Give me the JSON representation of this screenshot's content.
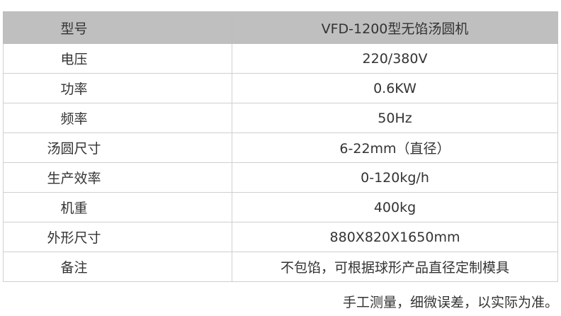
{
  "table": {
    "rows": [
      {
        "label": "型号",
        "value": "VFD-1200型无馅汤圆机"
      },
      {
        "label": "电压",
        "value": "220/380V"
      },
      {
        "label": "功率",
        "value": "0.6KW"
      },
      {
        "label": "频率",
        "value": "50Hz"
      },
      {
        "label": "汤圆尺寸",
        "value": "6-22mm（直径）"
      },
      {
        "label": "生产效率",
        "value": "0-120kg/h"
      },
      {
        "label": "机重",
        "value": "400kg"
      },
      {
        "label": "外形尺寸",
        "value": "880X820X1650mm"
      },
      {
        "label": "备注",
        "value": "不包馅，可根据球形产品直径定制模具"
      }
    ]
  },
  "note": "手工测量，细微误差，以实际为准。",
  "colors": {
    "header_bg": "#bfbfbf",
    "border": "#cfcfcf",
    "text": "#333333"
  }
}
